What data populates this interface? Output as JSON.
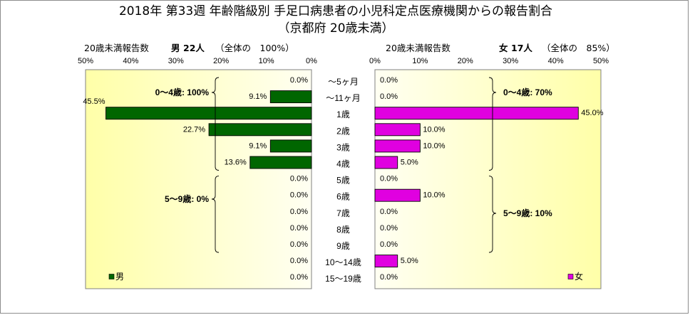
{
  "chart_data": {
    "type": "bar",
    "orientation": "horizontal",
    "title": "2018年 第33週 年齢階級別 手足口病患者の小児科定点医療機関からの報告割合",
    "subtitle": "（京都府 20歳未満）",
    "categories": [
      "～5ヶ月",
      "～11ヶ月",
      "1歳",
      "2歳",
      "3歳",
      "4歳",
      "5歳",
      "6歳",
      "7歳",
      "8歳",
      "9歳",
      "10～14歳",
      "15～19歳"
    ],
    "x_ticks": [
      "0%",
      "10%",
      "20%",
      "30%",
      "40%",
      "50%"
    ],
    "xlim": [
      0,
      50
    ],
    "grid": false,
    "series": [
      {
        "name": "男",
        "color": "#006600",
        "header_label": "20歳未満報告数",
        "count": "22人",
        "share": "（全体の　100%）",
        "legend_position": "bottom-left",
        "values": [
          0.0,
          9.1,
          45.5,
          22.7,
          9.1,
          13.6,
          0.0,
          0.0,
          0.0,
          0.0,
          0.0,
          0.0,
          0.0
        ],
        "annotations": [
          {
            "text": "0～4歳: 100%",
            "category_range": [
              0,
              5
            ]
          },
          {
            "text": "5～9歳: 0%",
            "category_range": [
              6,
              10
            ]
          }
        ]
      },
      {
        "name": "女",
        "color": "#E000E0",
        "header_label": "20歳未満報告数",
        "count": "17人",
        "share": "（全体の　85%）",
        "legend_position": "bottom-right",
        "values": [
          0.0,
          0.0,
          45.0,
          10.0,
          10.0,
          5.0,
          0.0,
          10.0,
          0.0,
          0.0,
          0.0,
          5.0,
          0.0
        ],
        "annotations": [
          {
            "text": "0～4歳: 70%",
            "category_range": [
              0,
              5
            ]
          },
          {
            "text": "5～9歳: 10%",
            "category_range": [
              6,
              10
            ]
          }
        ]
      }
    ]
  }
}
